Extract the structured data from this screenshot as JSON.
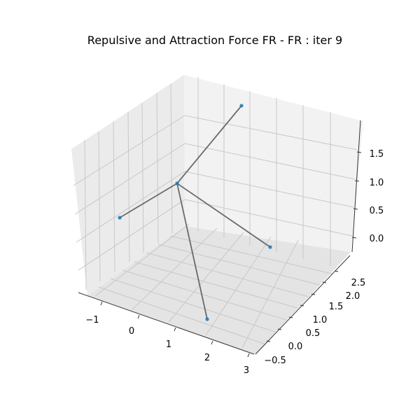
{
  "chart_data": {
    "type": "scatter",
    "title": "Repulsive and Attraction Force FR - FR : iter 9",
    "xlabel": "",
    "ylabel": "",
    "zlabel": "",
    "xlim": [
      -1.5,
      3.0
    ],
    "ylim": [
      -0.75,
      2.9
    ],
    "zlim": [
      -0.25,
      2.0
    ],
    "xticks": [
      "−1",
      "0",
      "1",
      "2",
      "3"
    ],
    "yticks": [
      "−0.5",
      "0.0",
      "0.5",
      "1.0",
      "1.5",
      "2.0",
      "2.5"
    ],
    "zticks": [
      "0.0",
      "0.5",
      "1.0",
      "1.5"
    ],
    "grid": true,
    "nodes": [
      {
        "label": "center",
        "screen": [
          253,
          262
        ]
      },
      {
        "label": "top",
        "screen": [
          345,
          151
        ]
      },
      {
        "label": "left",
        "screen": [
          171,
          311
        ]
      },
      {
        "label": "right",
        "screen": [
          386,
          353
        ]
      },
      {
        "label": "bottom",
        "screen": [
          296,
          456
        ]
      }
    ],
    "edges": [
      [
        0,
        1
      ],
      [
        0,
        2
      ],
      [
        0,
        3
      ],
      [
        0,
        4
      ]
    ],
    "colors": {
      "node": "#1f77b4",
      "edge": "#555555",
      "pane": "#f2f2f2",
      "pane_side": "#e6e6e6",
      "grid": "#cccccc"
    }
  }
}
